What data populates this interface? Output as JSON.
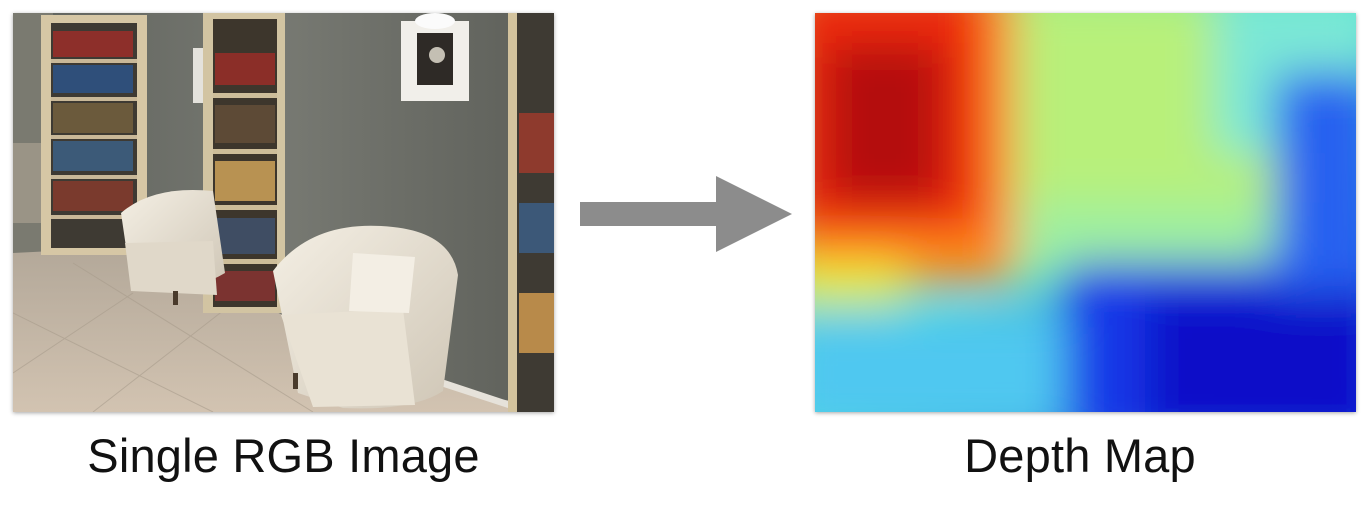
{
  "captions": {
    "input": "Single RGB Image",
    "output": "Depth Map"
  },
  "colors": {
    "arrow": "#8c8c8c",
    "wall": "#6c6e67",
    "floor": "#c7b9a8",
    "chair": "#ece6d9",
    "depth_near": "#c00000",
    "depth_mid": "#a8f07a",
    "depth_far": "#0a14c8"
  },
  "icons": [
    "right-arrow-icon"
  ]
}
